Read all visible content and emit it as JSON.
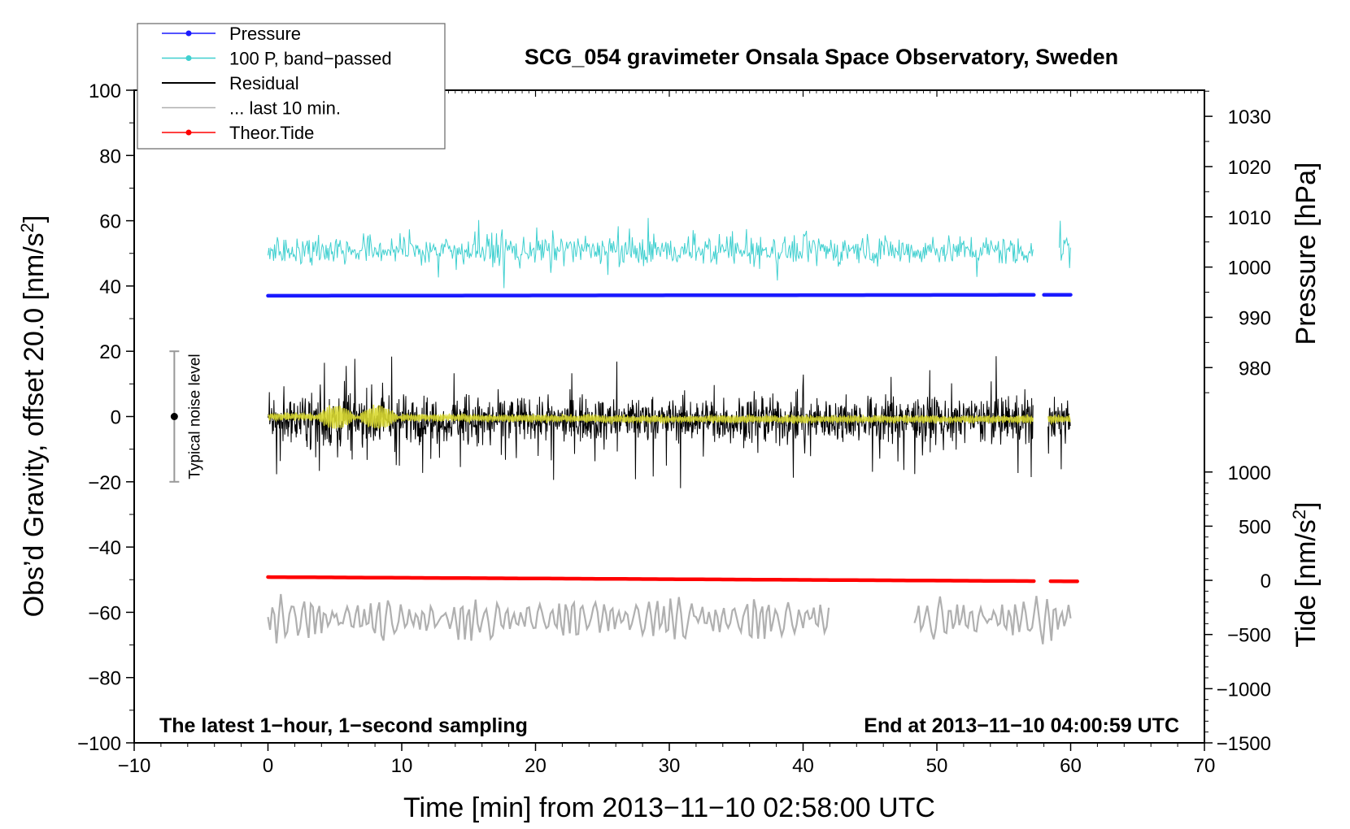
{
  "chart_data": {
    "type": "line",
    "title": "SCG_054 gravimeter Onsala Space Observatory, Sweden",
    "xlabel": "Time [min] from 2013−11−10 02:58:00 UTC",
    "ylabel_left_pre": "Obs’d Gravity, offset 20.0 [nm/s",
    "ylabel_left_sup": "2",
    "ylabel_left_post": "]",
    "ylabel_pressure": "Pressure [hPa]",
    "ylabel_tide_pre": "Tide [nm/s",
    "ylabel_tide_sup": "2",
    "ylabel_tide_post": "]",
    "xlim": [
      -10,
      70
    ],
    "ylim": [
      -100,
      100
    ],
    "x_ticks": [
      "−10",
      "0",
      "10",
      "20",
      "30",
      "40",
      "50",
      "60",
      "70"
    ],
    "x_tick_values": [
      -10,
      0,
      10,
      20,
      30,
      40,
      50,
      60,
      70
    ],
    "y_ticks": [
      "−100",
      "−80",
      "−60",
      "−40",
      "−20",
      "0",
      "20",
      "40",
      "60",
      "80",
      "100"
    ],
    "y_tick_values": [
      -100,
      -80,
      -60,
      -40,
      -20,
      0,
      20,
      40,
      60,
      80,
      100
    ],
    "pressure_axis": {
      "ticks": [
        "980",
        "990",
        "1000",
        "1010",
        "1020",
        "1030"
      ],
      "tick_values": [
        980,
        990,
        1000,
        1010,
        1020,
        1030
      ],
      "left_axis_equivalent": {
        "980": 15,
        "1030": 92
      }
    },
    "tide_axis": {
      "ticks": [
        "−1500",
        "−1000",
        "−500",
        "0",
        "500",
        "1000"
      ],
      "tick_values": [
        -1500,
        -1000,
        -500,
        0,
        500,
        1000
      ],
      "left_axis_equivalent": {
        "-1500": -100,
        "1000": -17
      }
    },
    "legend": [
      {
        "label": "Pressure",
        "color": "#1a1aff",
        "marker": true
      },
      {
        "label": "100 P, band−passed",
        "color": "#40d0d0",
        "marker": true
      },
      {
        "label": "Residual",
        "color": "#000000",
        "marker": false
      },
      {
        "label": "... last 10 min.",
        "color": "#b0b0b0",
        "marker": false
      },
      {
        "label": "Theor.Tide",
        "color": "#ff0000",
        "marker": true
      }
    ],
    "series": [
      {
        "name": "Pressure",
        "color": "#1a1aff",
        "x_range": [
          0,
          60
        ],
        "gap": [
          57.3,
          58.0
        ],
        "y_start": 37.0,
        "y_end": 37.3
      },
      {
        "name": "100 P, band-passed",
        "color": "#40d0d0",
        "x_range": [
          0,
          60
        ],
        "gap": [
          57.2,
          59.1
        ],
        "y_center": 51,
        "y_amplitude": 6
      },
      {
        "name": "Residual",
        "color": "#000000",
        "x_range": [
          0,
          60
        ],
        "gap": [
          57.2,
          58.3
        ],
        "y_center": -1,
        "y_amplitude": 12
      },
      {
        "name": "Residual smoothed",
        "color": "#d8d830",
        "x_range": [
          0,
          60
        ],
        "gap": [
          57.2,
          58.3
        ],
        "y_center": 0
      },
      {
        "name": "... last 10 min.",
        "color": "#b0b0b0",
        "x_range": [
          0,
          60
        ],
        "gap": [
          42.0,
          48.2
        ],
        "y_center": -60,
        "y_amplitude": 8
      },
      {
        "name": "Theor.Tide",
        "color": "#ff0000",
        "x_range": [
          0,
          60.5
        ],
        "gap": [
          57.4,
          58.3
        ],
        "y_start": -49.2,
        "y_end": -50.5
      }
    ],
    "annotations": {
      "noise_label": "Typical noise level",
      "noise_x": -7,
      "noise_range": [
        -20,
        20
      ],
      "left_note": "The latest 1−hour, 1−second sampling",
      "right_note": "End at 2013−11−10 04:00:59 UTC"
    }
  }
}
